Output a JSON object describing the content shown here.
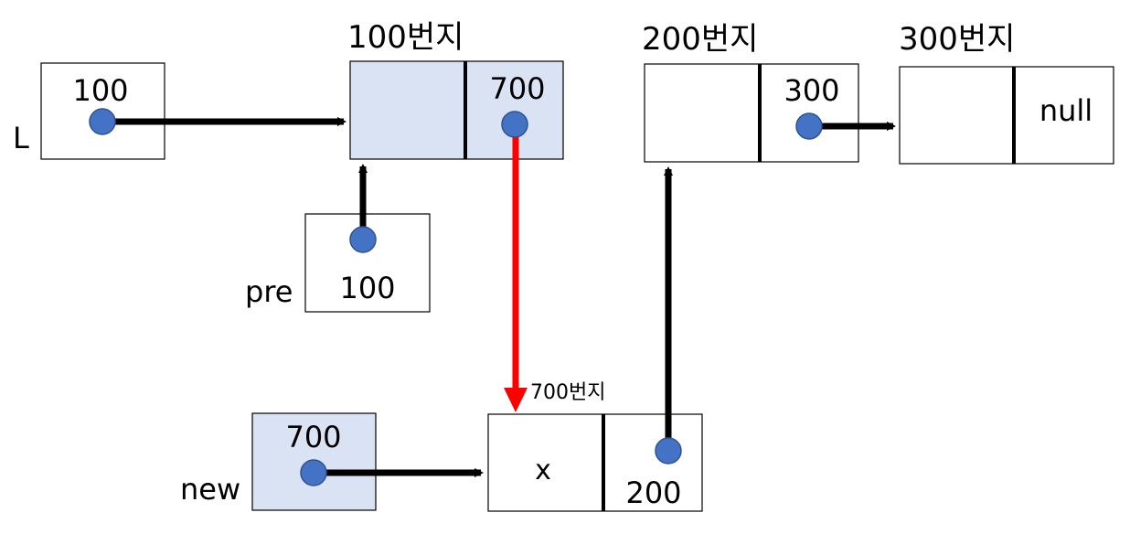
{
  "colors": {
    "box_fill_plain": "#ffffff",
    "box_fill_highlight": "#dae3f3",
    "box_stroke": "#000000",
    "pointer_dot": "#4472c4",
    "pointer_dot_stroke": "#2f528f",
    "arrow": "#000000",
    "arrow_highlight": "#ff0000"
  },
  "variables": {
    "L": {
      "name": "L",
      "value": "100"
    },
    "pre": {
      "name": "pre",
      "value": "100"
    },
    "new": {
      "name": "new",
      "value": "700"
    }
  },
  "nodes": {
    "n100": {
      "address": "100번지",
      "data": "",
      "link": "700"
    },
    "n200": {
      "address": "200번지",
      "data": "",
      "link": "300"
    },
    "n300": {
      "address": "300번지",
      "data": "",
      "link": "null"
    },
    "n700": {
      "address": "700번지",
      "data": "x",
      "link": "200"
    }
  }
}
